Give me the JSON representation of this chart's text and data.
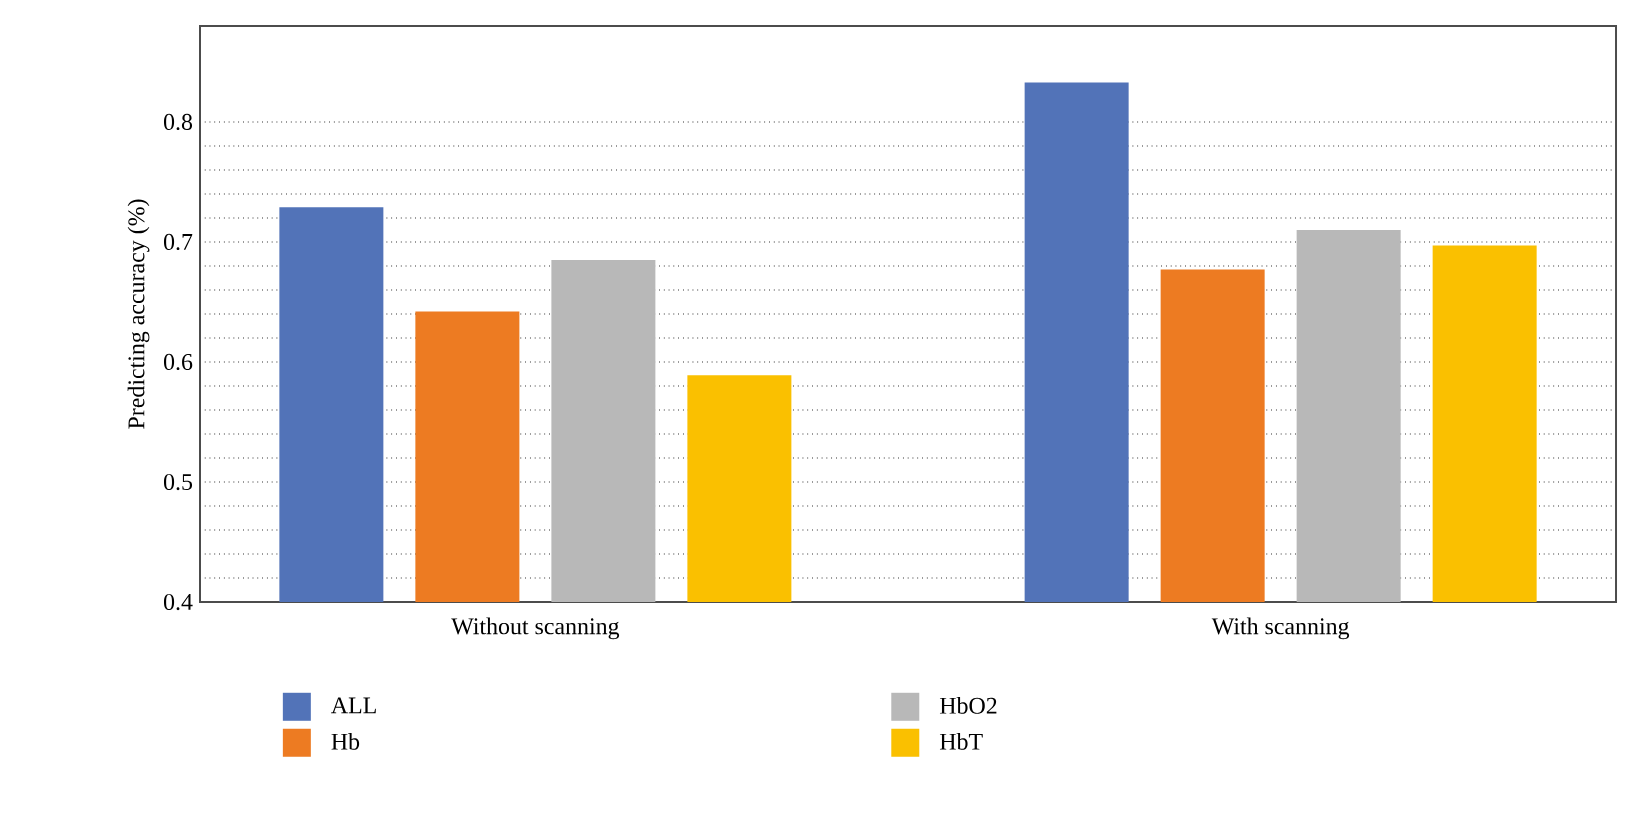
{
  "chart_data": {
    "type": "bar",
    "ylabel": "Predicting accuracy (%)",
    "categories": [
      "Without scanning",
      "With scanning"
    ],
    "series": [
      {
        "name": "ALL",
        "color": "#5273b8",
        "values": [
          0.729,
          0.833
        ]
      },
      {
        "name": "Hb",
        "color": "#ed7b22",
        "values": [
          0.642,
          0.677
        ]
      },
      {
        "name": "HbO2",
        "color": "#b8b8b8",
        "values": [
          0.685,
          0.71
        ]
      },
      {
        "name": "HbT",
        "color": "#fac000",
        "values": [
          0.589,
          0.697
        ]
      }
    ],
    "ylim": [
      0.4,
      0.88
    ],
    "yticks": [
      0.4,
      0.5,
      0.6,
      0.7,
      0.8
    ],
    "grid": "y",
    "legend": "bottom"
  }
}
